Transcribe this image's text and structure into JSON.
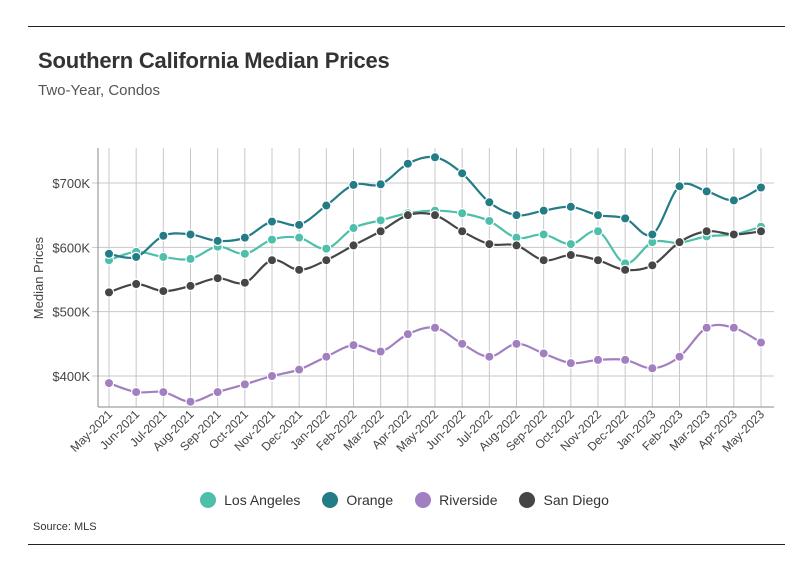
{
  "title": "Southern California Median Prices",
  "subtitle": "Two-Year, Condos",
  "source": "Source:  MLS",
  "chart_data": {
    "type": "line",
    "title": "Southern California Median Prices",
    "subtitle": "Two-Year, Condos",
    "xlabel": "",
    "ylabel": "Median Prices",
    "ylim": [
      350000,
      750000
    ],
    "yticks": [
      400000,
      500000,
      600000,
      700000
    ],
    "ytick_labels": [
      "$400K",
      "$500K",
      "$600K",
      "$700K"
    ],
    "grid": "vertical",
    "legend_position": "bottom",
    "categories": [
      "May-2021",
      "Jun-2021",
      "Jul-2021",
      "Aug-2021",
      "Sep-2021",
      "Oct-2021",
      "Nov-2021",
      "Dec-2021",
      "Jan-2022",
      "Feb-2022",
      "Mar-2022",
      "Apr-2022",
      "May-2022",
      "Jun-2022",
      "Jul-2022",
      "Aug-2022",
      "Sep-2022",
      "Oct-2022",
      "Nov-2022",
      "Dec-2022",
      "Jan-2023",
      "Feb-2023",
      "Mar-2023",
      "Apr-2023",
      "May-2023"
    ],
    "series": [
      {
        "name": "Los Angeles",
        "color": "#4dbfab",
        "values": [
          580000,
          593000,
          585000,
          582000,
          601000,
          590000,
          612000,
          615000,
          598000,
          630000,
          642000,
          653000,
          657000,
          653000,
          641000,
          615000,
          620000,
          605000,
          625000,
          575000,
          608000,
          607000,
          617000,
          620000,
          632000
        ]
      },
      {
        "name": "Orange",
        "color": "#237c86",
        "values": [
          590000,
          585000,
          618000,
          620000,
          610000,
          615000,
          640000,
          635000,
          665000,
          697000,
          698000,
          730000,
          740000,
          715000,
          670000,
          650000,
          657000,
          663000,
          650000,
          645000,
          620000,
          695000,
          687000,
          673000,
          693000
        ]
      },
      {
        "name": "Riverside",
        "color": "#a27fc0",
        "values": [
          389000,
          375000,
          375000,
          360000,
          375000,
          387000,
          400000,
          410000,
          430000,
          448000,
          438000,
          465000,
          475000,
          450000,
          430000,
          450000,
          435000,
          420000,
          425000,
          425000,
          412000,
          430000,
          475000,
          475000,
          452000
        ]
      },
      {
        "name": "San Diego",
        "color": "#464646",
        "values": [
          530000,
          543000,
          532000,
          540000,
          552000,
          545000,
          580000,
          565000,
          580000,
          603000,
          625000,
          650000,
          650000,
          625000,
          605000,
          603000,
          580000,
          588000,
          580000,
          565000,
          572000,
          608000,
          625000,
          620000,
          625000
        ]
      }
    ]
  }
}
